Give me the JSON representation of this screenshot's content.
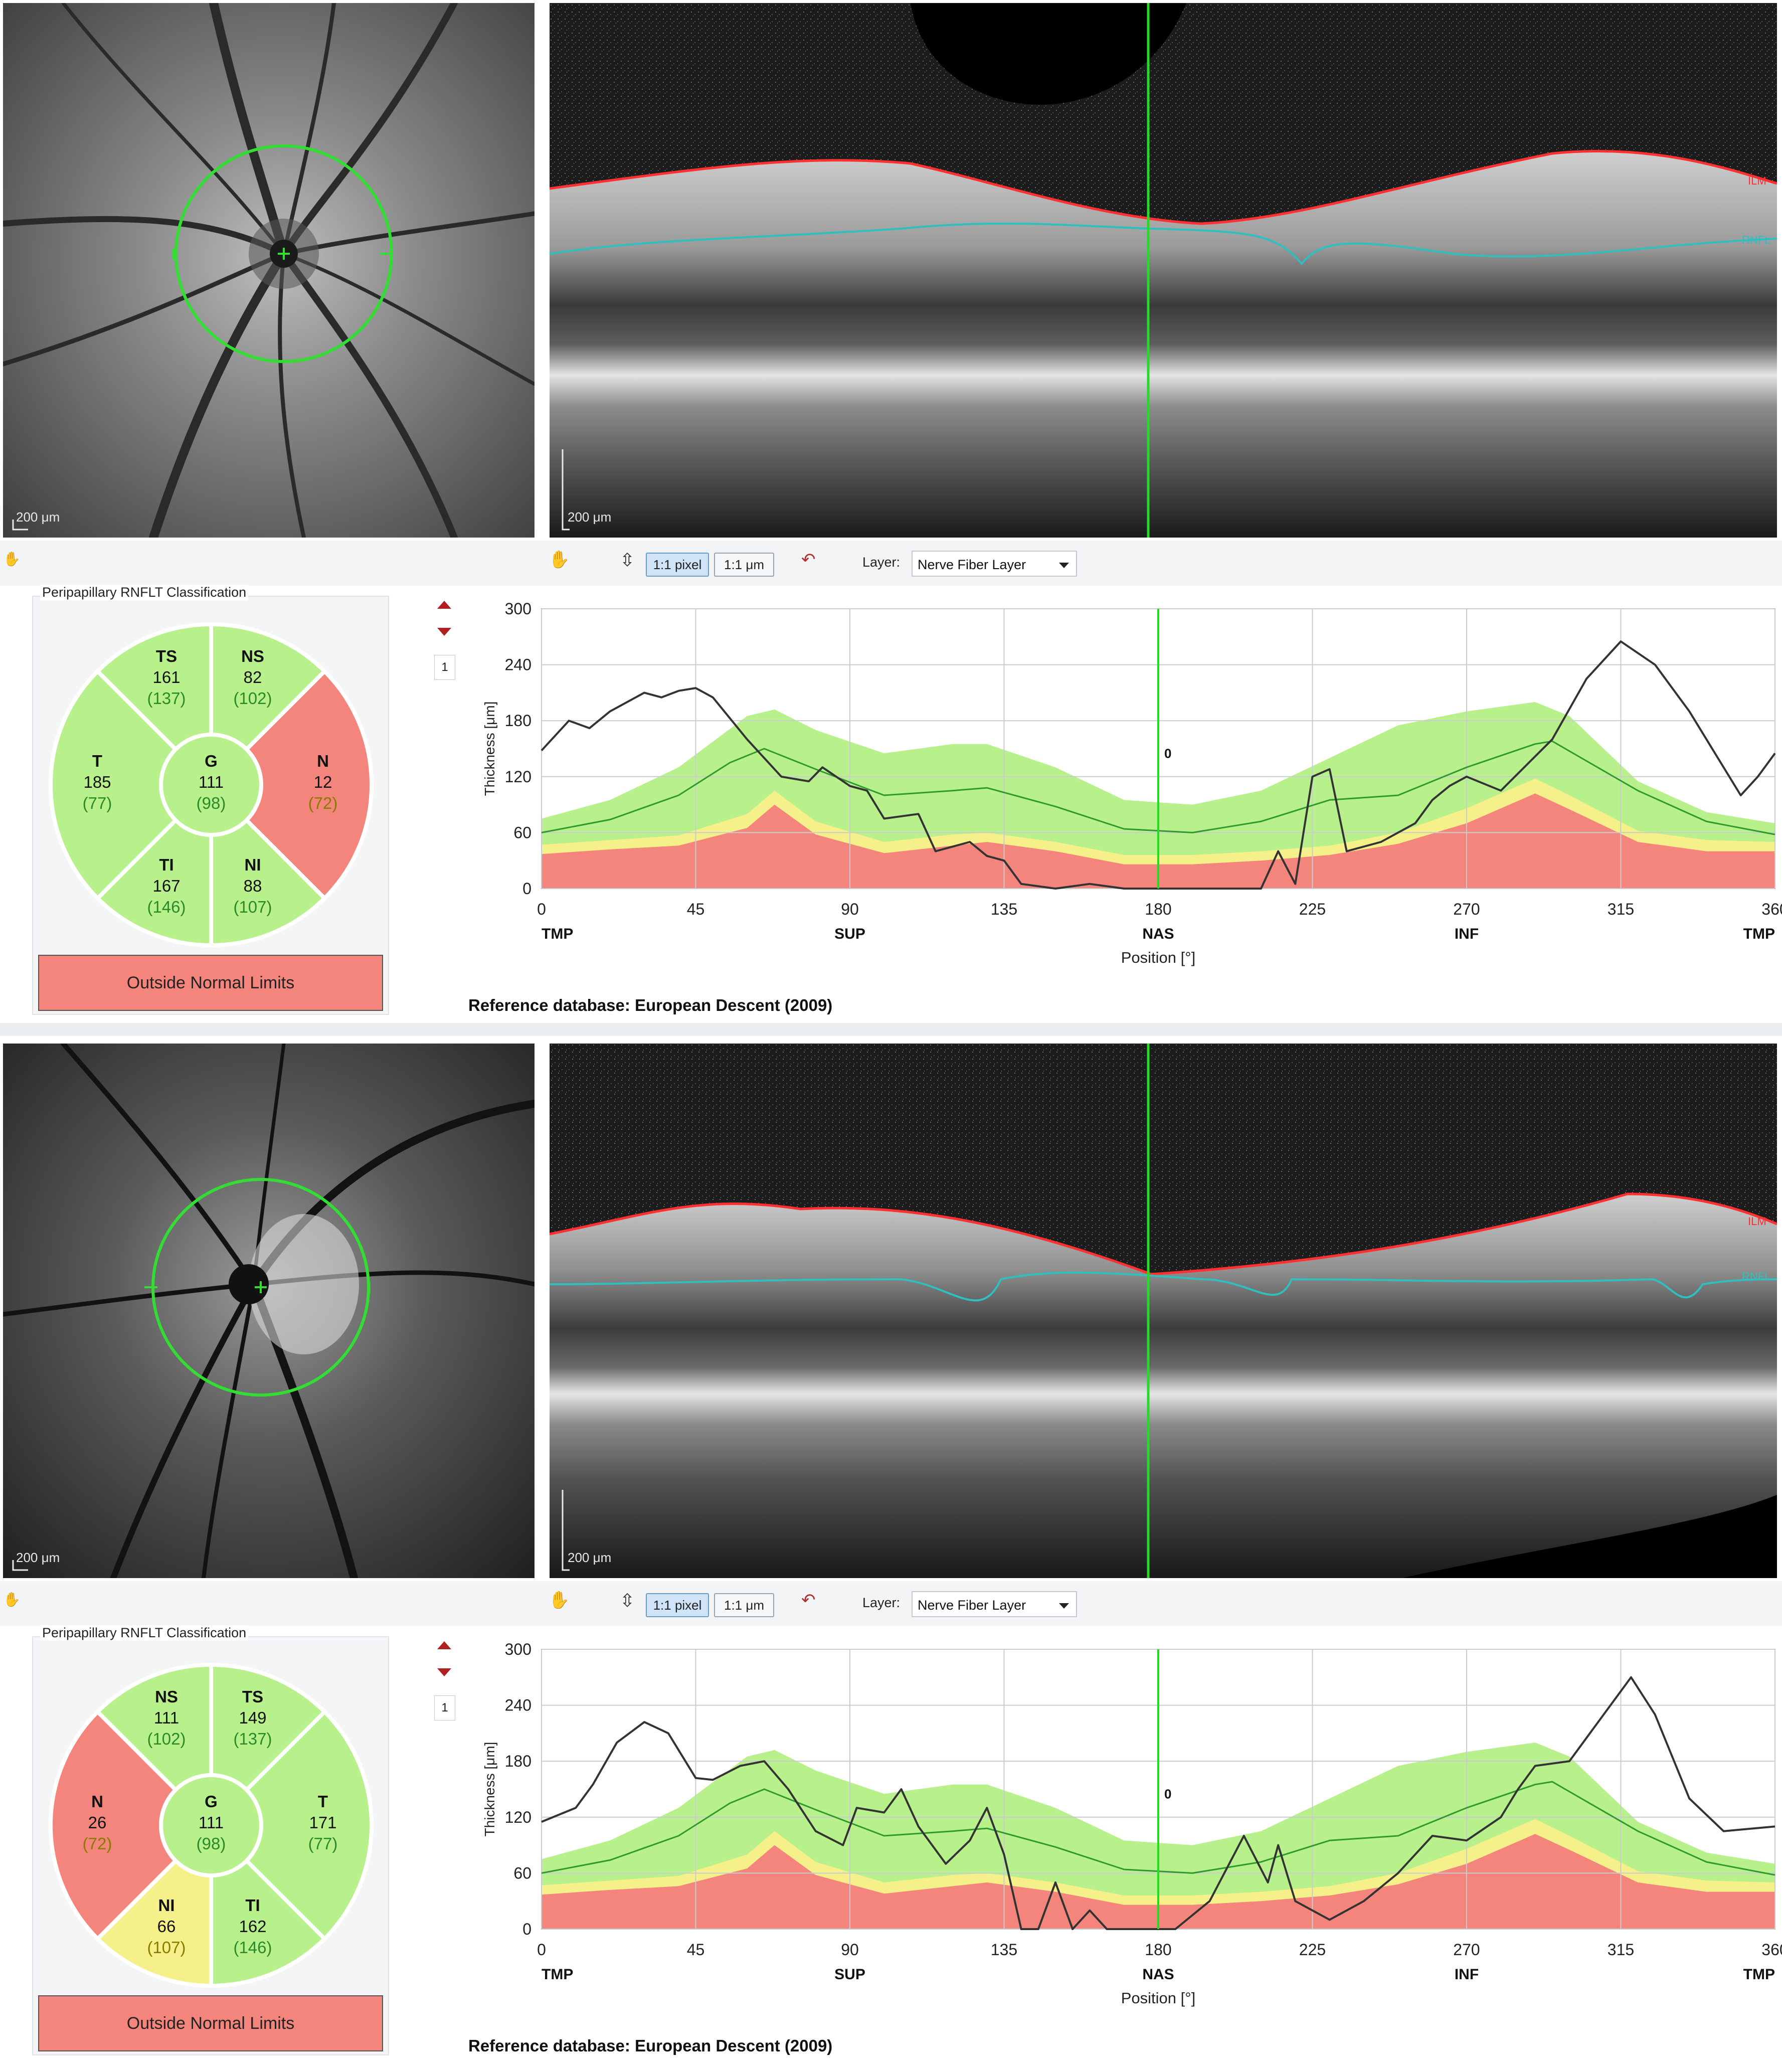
{
  "panels": [
    {
      "fundus": {
        "scale_label": "200 μm",
        "eye_side": "left-disc"
      },
      "bscan": {
        "scale_label": "200 μm",
        "layer_tags": [
          "ILM",
          "RNFL"
        ]
      },
      "toolbar": {
        "btn_pixel": "1:1 pixel",
        "btn_um": "1:1 μm",
        "layer_label": "Layer:",
        "layer_value": "Nerve Fiber Layer"
      },
      "classification": {
        "title": "Peripapillary RNFLT Classification",
        "sectors": [
          {
            "id": "top-left",
            "abbr": "TS",
            "value": "161",
            "normal": "(137)",
            "status": "normal"
          },
          {
            "id": "top-right",
            "abbr": "NS",
            "value": "82",
            "normal": "(102)",
            "status": "normal"
          },
          {
            "id": "left",
            "abbr": "T",
            "value": "185",
            "normal": "(77)",
            "status": "normal"
          },
          {
            "id": "right",
            "abbr": "N",
            "value": "12",
            "normal": "(72)",
            "status": "outside"
          },
          {
            "id": "bottom-left",
            "abbr": "TI",
            "value": "167",
            "normal": "(146)",
            "status": "normal"
          },
          {
            "id": "bottom-right",
            "abbr": "NI",
            "value": "88",
            "normal": "(107)",
            "status": "normal"
          }
        ],
        "global": {
          "abbr": "G",
          "value": "111",
          "normal": "(98)"
        },
        "result": "Outside Normal Limits"
      },
      "side": {
        "page_number": "1"
      },
      "chart_data": {
        "type": "line",
        "ylabel": "Thickness [μm]",
        "xlabel": "Position [°]",
        "xlim": [
          0,
          360
        ],
        "ylim": [
          0,
          300
        ],
        "xticks": [
          0,
          45,
          90,
          135,
          180,
          225,
          270,
          315,
          360
        ],
        "yticks": [
          0,
          60,
          120,
          180,
          240,
          300
        ],
        "region_labels": [
          {
            "x": 0,
            "label": "TMP"
          },
          {
            "x": 90,
            "label": "SUP"
          },
          {
            "x": 180,
            "label": "NAS"
          },
          {
            "x": 270,
            "label": "INF"
          },
          {
            "x": 360,
            "label": "TMP"
          }
        ],
        "cursor": {
          "x": 180,
          "label": "0"
        },
        "bands": {
          "x": [
            0,
            20,
            40,
            60,
            68,
            80,
            100,
            120,
            130,
            150,
            170,
            190,
            210,
            230,
            250,
            270,
            290,
            300,
            320,
            340,
            360
          ],
          "red": [
            37,
            42,
            46,
            65,
            90,
            58,
            38,
            46,
            50,
            40,
            26,
            26,
            30,
            36,
            48,
            70,
            102,
            85,
            50,
            40,
            40
          ],
          "yellow": [
            47,
            52,
            57,
            80,
            105,
            72,
            50,
            58,
            60,
            50,
            36,
            36,
            40,
            46,
            60,
            86,
            118,
            100,
            62,
            52,
            50
          ],
          "green": [
            75,
            95,
            130,
            185,
            192,
            170,
            145,
            155,
            155,
            130,
            95,
            90,
            105,
            140,
            175,
            190,
            200,
            185,
            115,
            82,
            70
          ]
        },
        "series": [
          {
            "name": "normal mean",
            "color": "#2e9a2e",
            "x": [
              0,
              20,
              40,
              55,
              65,
              80,
              100,
              120,
              130,
              150,
              170,
              190,
              210,
              230,
              250,
              270,
              290,
              295,
              320,
              340,
              360
            ],
            "y": [
              60,
              74,
              100,
              135,
              150,
              128,
              100,
              105,
              108,
              88,
              64,
              60,
              72,
              95,
              100,
              130,
              155,
              158,
              105,
              72,
              58
            ]
          },
          {
            "name": "measured",
            "color": "#333333",
            "x": [
              0,
              8,
              14,
              20,
              30,
              35,
              40,
              45,
              50,
              60,
              70,
              78,
              82,
              90,
              95,
              100,
              110,
              115,
              125,
              130,
              135,
              140,
              150,
              160,
              170,
              180,
              190,
              200,
              210,
              215,
              220,
              225,
              230,
              235,
              245,
              255,
              260,
              265,
              270,
              280,
              295,
              305,
              315,
              325,
              335,
              350,
              355,
              360
            ],
            "y": [
              148,
              180,
              172,
              190,
              210,
              205,
              212,
              215,
              205,
              160,
              120,
              115,
              130,
              110,
              105,
              75,
              80,
              40,
              50,
              35,
              30,
              5,
              0,
              5,
              0,
              0,
              0,
              0,
              0,
              40,
              5,
              120,
              128,
              40,
              50,
              70,
              95,
              110,
              120,
              105,
              160,
              225,
              265,
              240,
              190,
              100,
              120,
              145
            ]
          }
        ]
      },
      "reference": "Reference database: European Descent (2009)"
    },
    {
      "fundus": {
        "scale_label": "200 μm",
        "eye_side": "right-disc"
      },
      "bscan": {
        "scale_label": "200 μm",
        "layer_tags": [
          "ILM",
          "RNFL"
        ]
      },
      "toolbar": {
        "btn_pixel": "1:1 pixel",
        "btn_um": "1:1 μm",
        "layer_label": "Layer:",
        "layer_value": "Nerve Fiber Layer"
      },
      "classification": {
        "title": "Peripapillary RNFLT Classification",
        "sectors": [
          {
            "id": "top-left",
            "abbr": "NS",
            "value": "111",
            "normal": "(102)",
            "status": "normal"
          },
          {
            "id": "top-right",
            "abbr": "TS",
            "value": "149",
            "normal": "(137)",
            "status": "normal"
          },
          {
            "id": "left",
            "abbr": "N",
            "value": "26",
            "normal": "(72)",
            "status": "outside"
          },
          {
            "id": "right",
            "abbr": "T",
            "value": "171",
            "normal": "(77)",
            "status": "normal"
          },
          {
            "id": "bottom-left",
            "abbr": "NI",
            "value": "66",
            "normal": "(107)",
            "status": "borderline"
          },
          {
            "id": "bottom-right",
            "abbr": "TI",
            "value": "162",
            "normal": "(146)",
            "status": "normal"
          }
        ],
        "global": {
          "abbr": "G",
          "value": "111",
          "normal": "(98)"
        },
        "result": "Outside Normal Limits"
      },
      "side": {
        "page_number": "1"
      },
      "chart_data": {
        "type": "line",
        "ylabel": "Thickness [μm]",
        "xlabel": "Position [°]",
        "xlim": [
          0,
          360
        ],
        "ylim": [
          0,
          300
        ],
        "xticks": [
          0,
          45,
          90,
          135,
          180,
          225,
          270,
          315,
          360
        ],
        "yticks": [
          0,
          60,
          120,
          180,
          240,
          300
        ],
        "region_labels": [
          {
            "x": 0,
            "label": "TMP"
          },
          {
            "x": 90,
            "label": "SUP"
          },
          {
            "x": 180,
            "label": "NAS"
          },
          {
            "x": 270,
            "label": "INF"
          },
          {
            "x": 360,
            "label": "TMP"
          }
        ],
        "cursor": {
          "x": 180,
          "label": "0"
        },
        "bands": {
          "x": [
            0,
            20,
            40,
            60,
            68,
            80,
            100,
            120,
            130,
            150,
            170,
            190,
            210,
            230,
            250,
            270,
            290,
            300,
            320,
            340,
            360
          ],
          "red": [
            37,
            42,
            46,
            65,
            90,
            58,
            38,
            46,
            50,
            40,
            26,
            26,
            30,
            36,
            48,
            70,
            102,
            85,
            50,
            40,
            40
          ],
          "yellow": [
            47,
            52,
            57,
            80,
            105,
            72,
            50,
            58,
            60,
            50,
            36,
            36,
            40,
            46,
            60,
            86,
            118,
            100,
            62,
            52,
            50
          ],
          "green": [
            75,
            95,
            130,
            185,
            192,
            170,
            145,
            155,
            155,
            130,
            95,
            90,
            105,
            140,
            175,
            190,
            200,
            185,
            115,
            82,
            70
          ]
        },
        "series": [
          {
            "name": "normal mean",
            "color": "#2e9a2e",
            "x": [
              0,
              20,
              40,
              55,
              65,
              80,
              100,
              120,
              130,
              150,
              170,
              190,
              210,
              230,
              250,
              270,
              290,
              295,
              320,
              340,
              360
            ],
            "y": [
              60,
              74,
              100,
              135,
              150,
              128,
              100,
              105,
              108,
              88,
              64,
              60,
              72,
              95,
              100,
              130,
              155,
              158,
              105,
              72,
              58
            ]
          },
          {
            "name": "measured",
            "color": "#333333",
            "x": [
              0,
              10,
              15,
              22,
              30,
              37,
              45,
              50,
              58,
              65,
              72,
              80,
              88,
              92,
              100,
              105,
              110,
              118,
              125,
              130,
              135,
              140,
              145,
              150,
              155,
              160,
              165,
              175,
              185,
              195,
              205,
              212,
              215,
              220,
              230,
              240,
              250,
              260,
              270,
              280,
              285,
              290,
              300,
              310,
              318,
              325,
              335,
              345,
              360
            ],
            "y": [
              115,
              130,
              155,
              200,
              222,
              210,
              162,
              160,
              175,
              180,
              150,
              105,
              90,
              130,
              125,
              150,
              110,
              70,
              95,
              130,
              80,
              0,
              0,
              50,
              0,
              20,
              0,
              0,
              0,
              30,
              100,
              50,
              90,
              30,
              10,
              30,
              60,
              100,
              95,
              120,
              150,
              175,
              180,
              230,
              270,
              230,
              140,
              105,
              110
            ]
          }
        ]
      },
      "reference": "Reference database: European Descent (2009)"
    }
  ]
}
